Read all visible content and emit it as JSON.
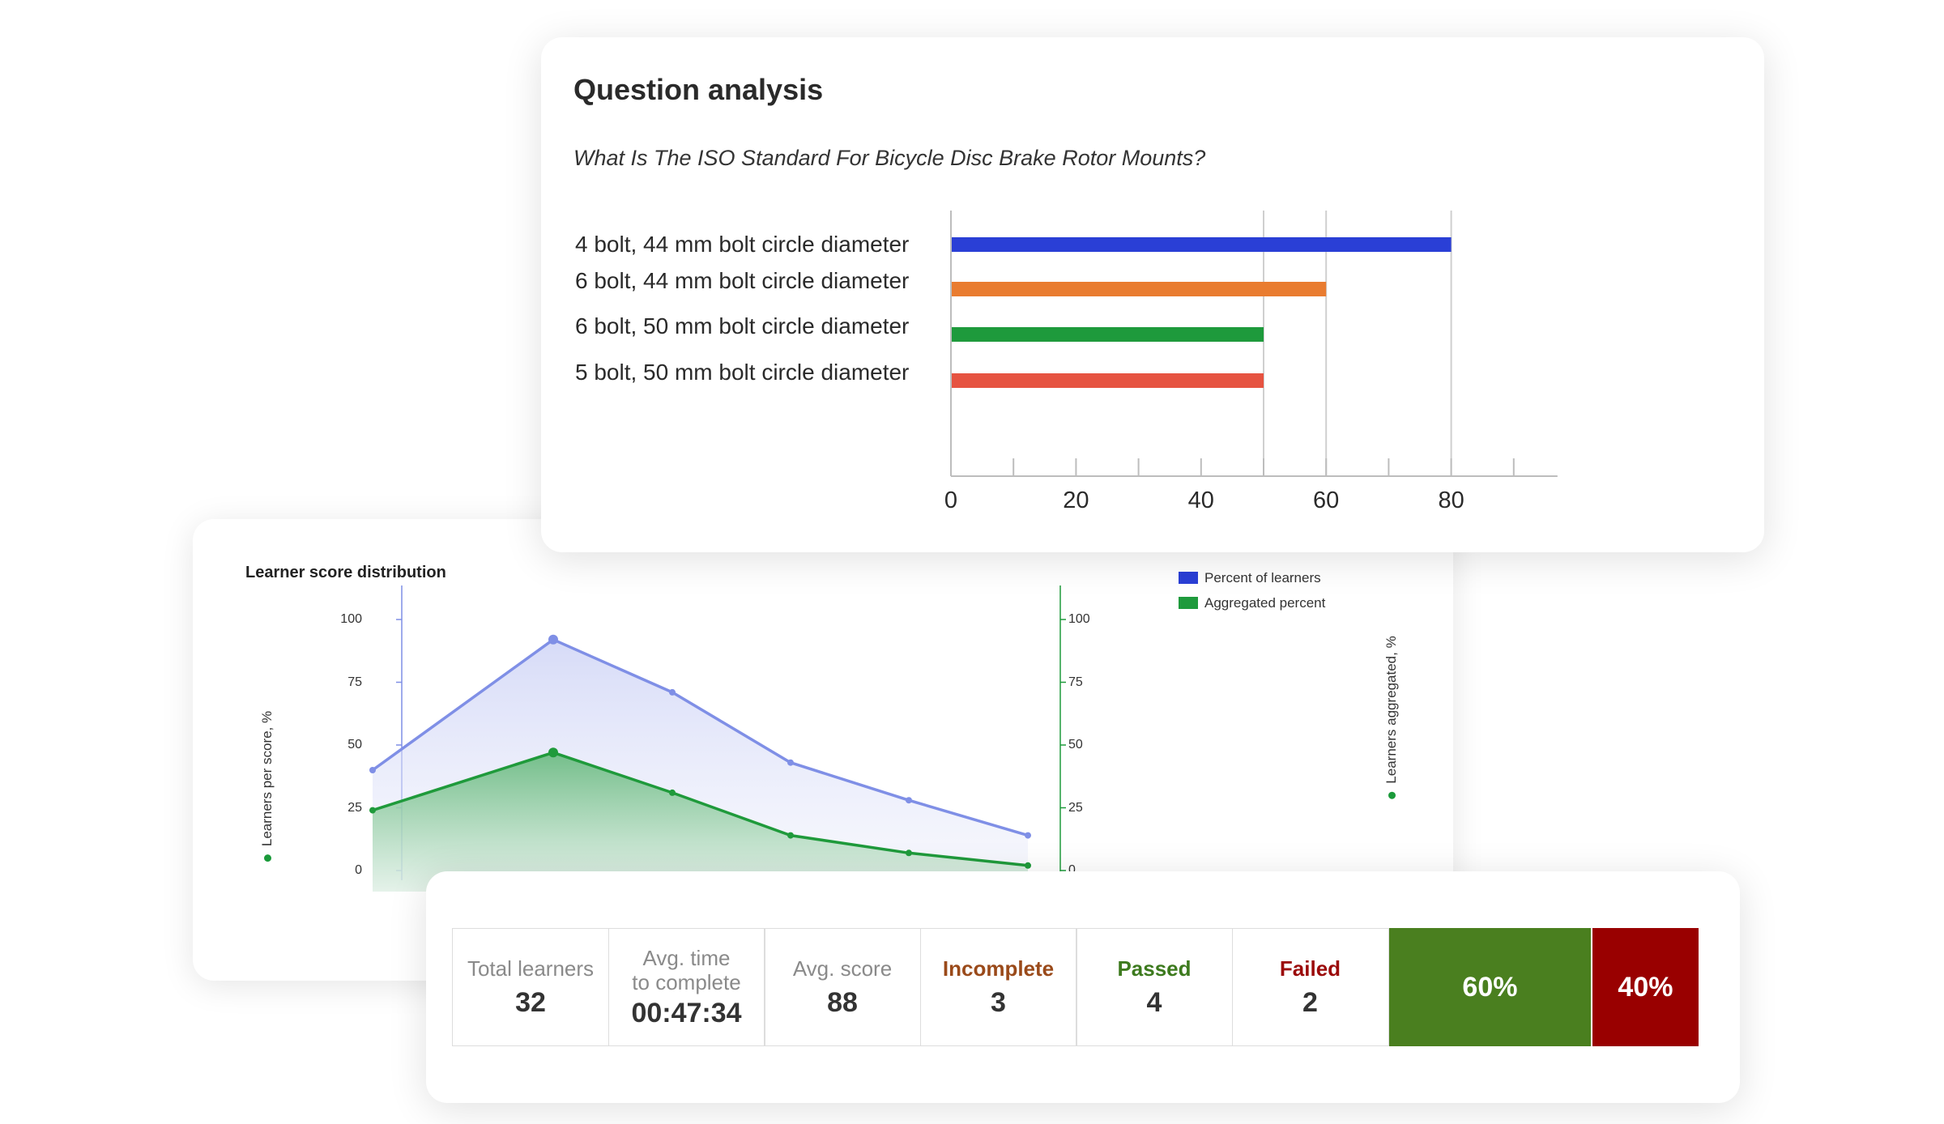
{
  "colors": {
    "blue": "#2a3fd6",
    "orange": "#e97c30",
    "green": "#1e9a3c",
    "red": "#e65341",
    "line_blue": "#7f8fe6",
    "line_green": "#1f9a3b",
    "incomplete": "#9a4a1a",
    "passed": "#3d7a1e",
    "failed": "#9b0a0a",
    "passed_bar": "#4a7f1f",
    "failed_bar": "#990000"
  },
  "question_analysis": {
    "title": "Question analysis",
    "question": "What Is The ISO Standard For Bicycle Disc Brake Rotor Mounts?"
  },
  "score_distribution": {
    "title": "Learner score distribution",
    "legend": [
      "Percent of learners",
      "Aggregated percent"
    ],
    "y_left_title": "Learners per score, %",
    "y_right_title": "Learners aggregated, %"
  },
  "stats": {
    "total_label": "Total learners",
    "total_value": "32",
    "time_label_1": "Avg. time",
    "time_label_2": "to complete",
    "time_value": "00:47:34",
    "score_label": "Avg. score",
    "score_value": "88",
    "incomplete_label": "Incomplete",
    "incomplete_value": "3",
    "passed_label": "Passed",
    "passed_value": "4",
    "failed_label": "Failed",
    "failed_value": "2",
    "passed_pct": "60%",
    "failed_pct": "40%",
    "passed_fraction": 0.6,
    "failed_fraction": 0.4
  },
  "chart_data": [
    {
      "type": "bar",
      "orientation": "horizontal",
      "title": "Question analysis",
      "subtitle": "What Is The ISO Standard For Bicycle Disc Brake Rotor Mounts?",
      "categories": [
        "4 bolt, 44 mm bolt circle diameter",
        "6 bolt, 44 mm bolt circle diameter",
        "6 bolt, 50 mm bolt circle diameter",
        "5 bolt, 50 mm bolt circle diameter"
      ],
      "values": [
        80,
        60,
        50,
        50
      ],
      "bar_colors": [
        "#2a3fd6",
        "#e97c30",
        "#1e9a3c",
        "#e65341"
      ],
      "xlim": [
        0,
        97
      ],
      "xticks": [
        0,
        20,
        40,
        60,
        80
      ],
      "minor_ticks": [
        10,
        30,
        50,
        70,
        90
      ],
      "xlabel": "",
      "ylabel": ""
    },
    {
      "type": "area",
      "title": "Learner score distribution",
      "x": [
        0,
        1,
        2,
        3,
        4,
        5
      ],
      "series": [
        {
          "name": "Percent of learners",
          "values": [
            40,
            92,
            71,
            43,
            28,
            14
          ],
          "axis": "left"
        },
        {
          "name": "Aggregated percent",
          "values": [
            24,
            47,
            31,
            14,
            7,
            2
          ],
          "axis": "right"
        }
      ],
      "y_left": {
        "label": "Learners per score, %",
        "ylim": [
          0,
          100
        ],
        "ticks": [
          0,
          25,
          50,
          75,
          100
        ]
      },
      "y_right": {
        "label": "Learners aggregated, %",
        "ylim": [
          0,
          100
        ],
        "ticks": [
          0,
          25,
          50,
          75,
          100
        ]
      },
      "legend_position": "top-right"
    }
  ]
}
